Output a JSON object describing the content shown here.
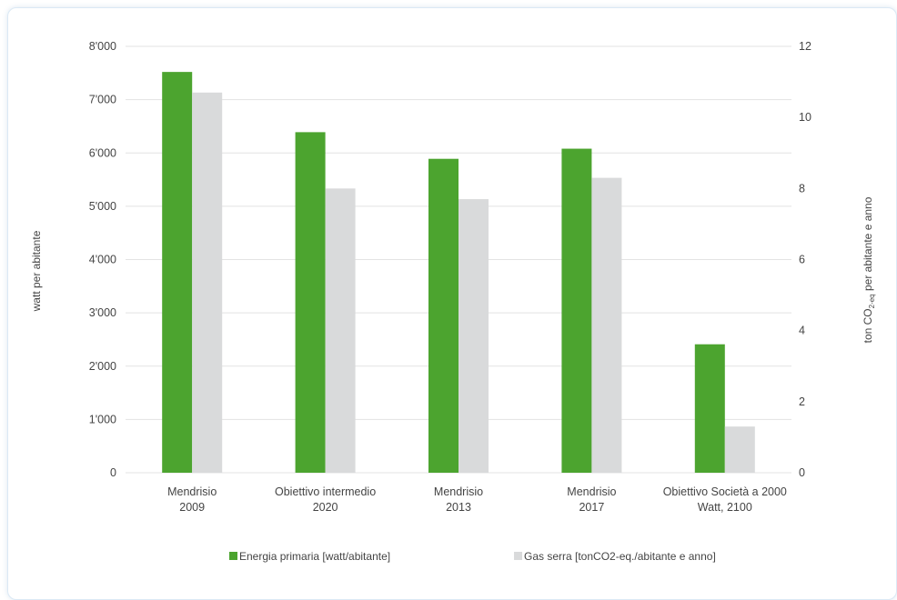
{
  "chart_data": {
    "type": "bar",
    "categories": [
      [
        "Mendrisio",
        "2009"
      ],
      [
        "Obiettivo intermedio",
        "2020"
      ],
      [
        "Mendrisio",
        "2013"
      ],
      [
        "Mendrisio",
        "2017"
      ],
      [
        "Obiettivo Società a 2000",
        "Watt, 2100"
      ]
    ],
    "series": [
      {
        "name": "Energia primaria [watt/abitante]",
        "axis": "left",
        "color": "#4ca42f",
        "values": [
          7520,
          6390,
          5890,
          6080,
          2410
        ]
      },
      {
        "name": "Gas serra [tonCO2-eq./abitante e anno]",
        "axis": "right",
        "color": "#d9dadb",
        "values": [
          10.7,
          8.0,
          7.7,
          8.3,
          1.3
        ]
      }
    ],
    "left_axis": {
      "label": "watt per abitante",
      "ylim": [
        0,
        8000
      ],
      "ticks": [
        "0",
        "1'000",
        "2'000",
        "3'000",
        "4'000",
        "5'000",
        "6'000",
        "7'000",
        "8'000"
      ]
    },
    "right_axis": {
      "label_main": "ton CO",
      "label_sub": "2-eq",
      "label_rest": " per abitante e anno",
      "ylim": [
        0,
        12
      ],
      "ticks": [
        "0",
        "2",
        "4",
        "6",
        "8",
        "10",
        "12"
      ]
    },
    "grid": true,
    "legend_position": "bottom"
  }
}
